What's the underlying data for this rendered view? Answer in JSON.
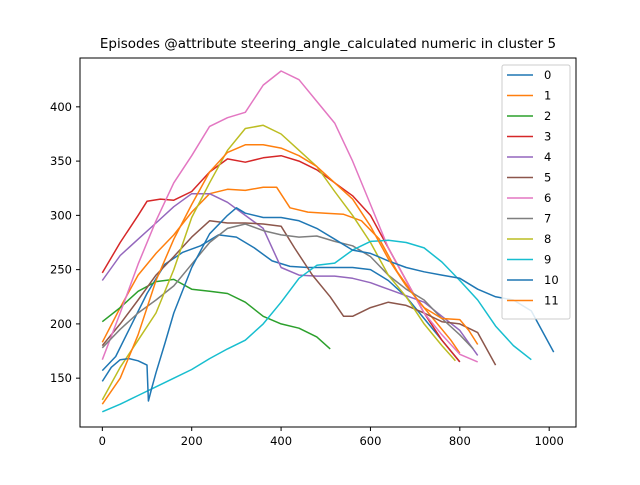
{
  "chart_data": {
    "type": "line",
    "title": "Episodes @attribute steering_angle_calculated numeric in cluster 5",
    "xlabel": "",
    "ylabel": "",
    "xlim": [
      -50,
      1060
    ],
    "ylim": [
      105,
      445
    ],
    "xticks": [
      0,
      200,
      400,
      600,
      800,
      1000
    ],
    "yticks": [
      150,
      200,
      250,
      300,
      350,
      400
    ],
    "grid": false,
    "legend_position": "top-right",
    "series": [
      {
        "name": "0",
        "color": "#1f77b4",
        "x": [
          0,
          30,
          60,
          100,
          140,
          180,
          220,
          260,
          300,
          340,
          380,
          420,
          460,
          500,
          560,
          600,
          640,
          680,
          720,
          760,
          800
        ],
        "y": [
          157,
          170,
          195,
          228,
          255,
          266,
          272,
          282,
          280,
          270,
          258,
          253,
          252,
          252,
          252,
          250,
          240,
          225,
          205,
          185,
          165
        ]
      },
      {
        "name": "1",
        "color": "#ff7f0e",
        "x": [
          0,
          40,
          80,
          120,
          160,
          200,
          240,
          280,
          320,
          360,
          390,
          420,
          460,
          500,
          540,
          580,
          620,
          660,
          700,
          740,
          780,
          800
        ],
        "y": [
          183,
          215,
          245,
          265,
          282,
          303,
          320,
          324,
          323,
          326,
          326,
          307,
          303,
          302,
          301,
          295,
          278,
          248,
          225,
          205,
          185,
          173
        ]
      },
      {
        "name": "2",
        "color": "#2ca02c",
        "x": [
          0,
          40,
          80,
          120,
          160,
          200,
          240,
          280,
          320,
          360,
          400,
          440,
          480,
          510
        ],
        "y": [
          202,
          215,
          230,
          239,
          241,
          232,
          230,
          228,
          220,
          207,
          200,
          196,
          188,
          177
        ]
      },
      {
        "name": "3",
        "color": "#d62728",
        "x": [
          0,
          40,
          80,
          100,
          130,
          160,
          200,
          240,
          280,
          320,
          360,
          400,
          440,
          480,
          520,
          560,
          600,
          640,
          680,
          720,
          760,
          800
        ],
        "y": [
          247,
          275,
          300,
          313,
          315,
          314,
          322,
          340,
          352,
          349,
          353,
          355,
          350,
          342,
          330,
          318,
          300,
          270,
          240,
          210,
          185,
          165
        ]
      },
      {
        "name": "4",
        "color": "#9467bd",
        "x": [
          0,
          40,
          80,
          120,
          160,
          200,
          240,
          280,
          320,
          360,
          400,
          440,
          480,
          520,
          560,
          600,
          640,
          680,
          720,
          760,
          800,
          840
        ],
        "y": [
          240,
          263,
          278,
          293,
          308,
          320,
          320,
          312,
          300,
          288,
          252,
          245,
          244,
          244,
          242,
          238,
          232,
          226,
          220,
          207,
          194,
          171
        ]
      },
      {
        "name": "5",
        "color": "#8c564b",
        "x": [
          0,
          40,
          80,
          120,
          160,
          200,
          240,
          280,
          320,
          360,
          400,
          430,
          470,
          510,
          540,
          560,
          600,
          640,
          680,
          720,
          760,
          800,
          840,
          880
        ],
        "y": [
          180,
          200,
          222,
          245,
          262,
          280,
          295,
          293,
          293,
          292,
          290,
          270,
          245,
          225,
          207,
          207,
          215,
          220,
          217,
          210,
          202,
          200,
          192,
          162
        ]
      },
      {
        "name": "6",
        "color": "#e377c2",
        "x": [
          0,
          40,
          80,
          120,
          160,
          200,
          240,
          280,
          320,
          360,
          400,
          440,
          480,
          520,
          560,
          600,
          640,
          680,
          720,
          760,
          800,
          840
        ],
        "y": [
          167,
          210,
          255,
          295,
          330,
          355,
          382,
          390,
          395,
          420,
          433,
          425,
          405,
          385,
          350,
          310,
          270,
          240,
          210,
          190,
          172,
          165
        ]
      },
      {
        "name": "7",
        "color": "#7f7f7f",
        "x": [
          0,
          40,
          80,
          120,
          160,
          200,
          240,
          280,
          320,
          360,
          400,
          440,
          480,
          520,
          560,
          600,
          640,
          680,
          720,
          760,
          800,
          830
        ],
        "y": [
          178,
          195,
          210,
          222,
          235,
          255,
          275,
          288,
          292,
          286,
          282,
          280,
          281,
          276,
          272,
          262,
          245,
          232,
          222,
          205,
          190,
          177
        ]
      },
      {
        "name": "8",
        "color": "#bcbd22",
        "x": [
          0,
          40,
          80,
          120,
          160,
          200,
          240,
          280,
          320,
          360,
          400,
          440,
          480,
          520,
          560,
          600,
          640,
          680,
          720,
          760,
          790
        ],
        "y": [
          130,
          160,
          185,
          210,
          250,
          298,
          330,
          360,
          380,
          383,
          375,
          360,
          345,
          322,
          300,
          275,
          245,
          225,
          200,
          180,
          166
        ]
      },
      {
        "name": "9",
        "color": "#17becf",
        "x": [
          0,
          40,
          80,
          120,
          160,
          200,
          240,
          280,
          320,
          360,
          400,
          440,
          480,
          520,
          560,
          600,
          640,
          680,
          720,
          760,
          800,
          840,
          880,
          920,
          960
        ],
        "y": [
          119,
          126,
          134,
          142,
          150,
          158,
          168,
          177,
          185,
          200,
          220,
          242,
          254,
          256,
          268,
          276,
          277,
          275,
          270,
          257,
          240,
          222,
          198,
          180,
          167
        ]
      },
      {
        "name": "10",
        "color": "#1f77b4",
        "x": [
          0,
          20,
          40,
          60,
          80,
          100,
          103,
          110,
          120,
          140,
          160,
          200,
          240,
          280,
          300,
          320,
          360,
          400,
          440,
          480,
          520,
          560,
          600,
          640,
          680,
          720,
          760,
          800,
          840,
          880,
          920,
          960,
          1010
        ],
        "y": [
          147,
          160,
          167,
          168,
          166,
          162,
          129,
          140,
          155,
          182,
          210,
          252,
          283,
          300,
          307,
          302,
          298,
          298,
          295,
          288,
          278,
          268,
          265,
          258,
          252,
          248,
          245,
          242,
          232,
          225,
          222,
          212,
          174
        ]
      },
      {
        "name": "11",
        "color": "#ff7f0e",
        "x": [
          0,
          40,
          80,
          120,
          160,
          200,
          240,
          280,
          320,
          360,
          400,
          440,
          480,
          520,
          560,
          600,
          640,
          680,
          720,
          760,
          800,
          820,
          840
        ],
        "y": [
          126,
          150,
          190,
          240,
          278,
          310,
          340,
          358,
          365,
          365,
          362,
          355,
          345,
          330,
          315,
          290,
          260,
          235,
          215,
          205,
          204,
          194,
          181
        ]
      }
    ]
  }
}
